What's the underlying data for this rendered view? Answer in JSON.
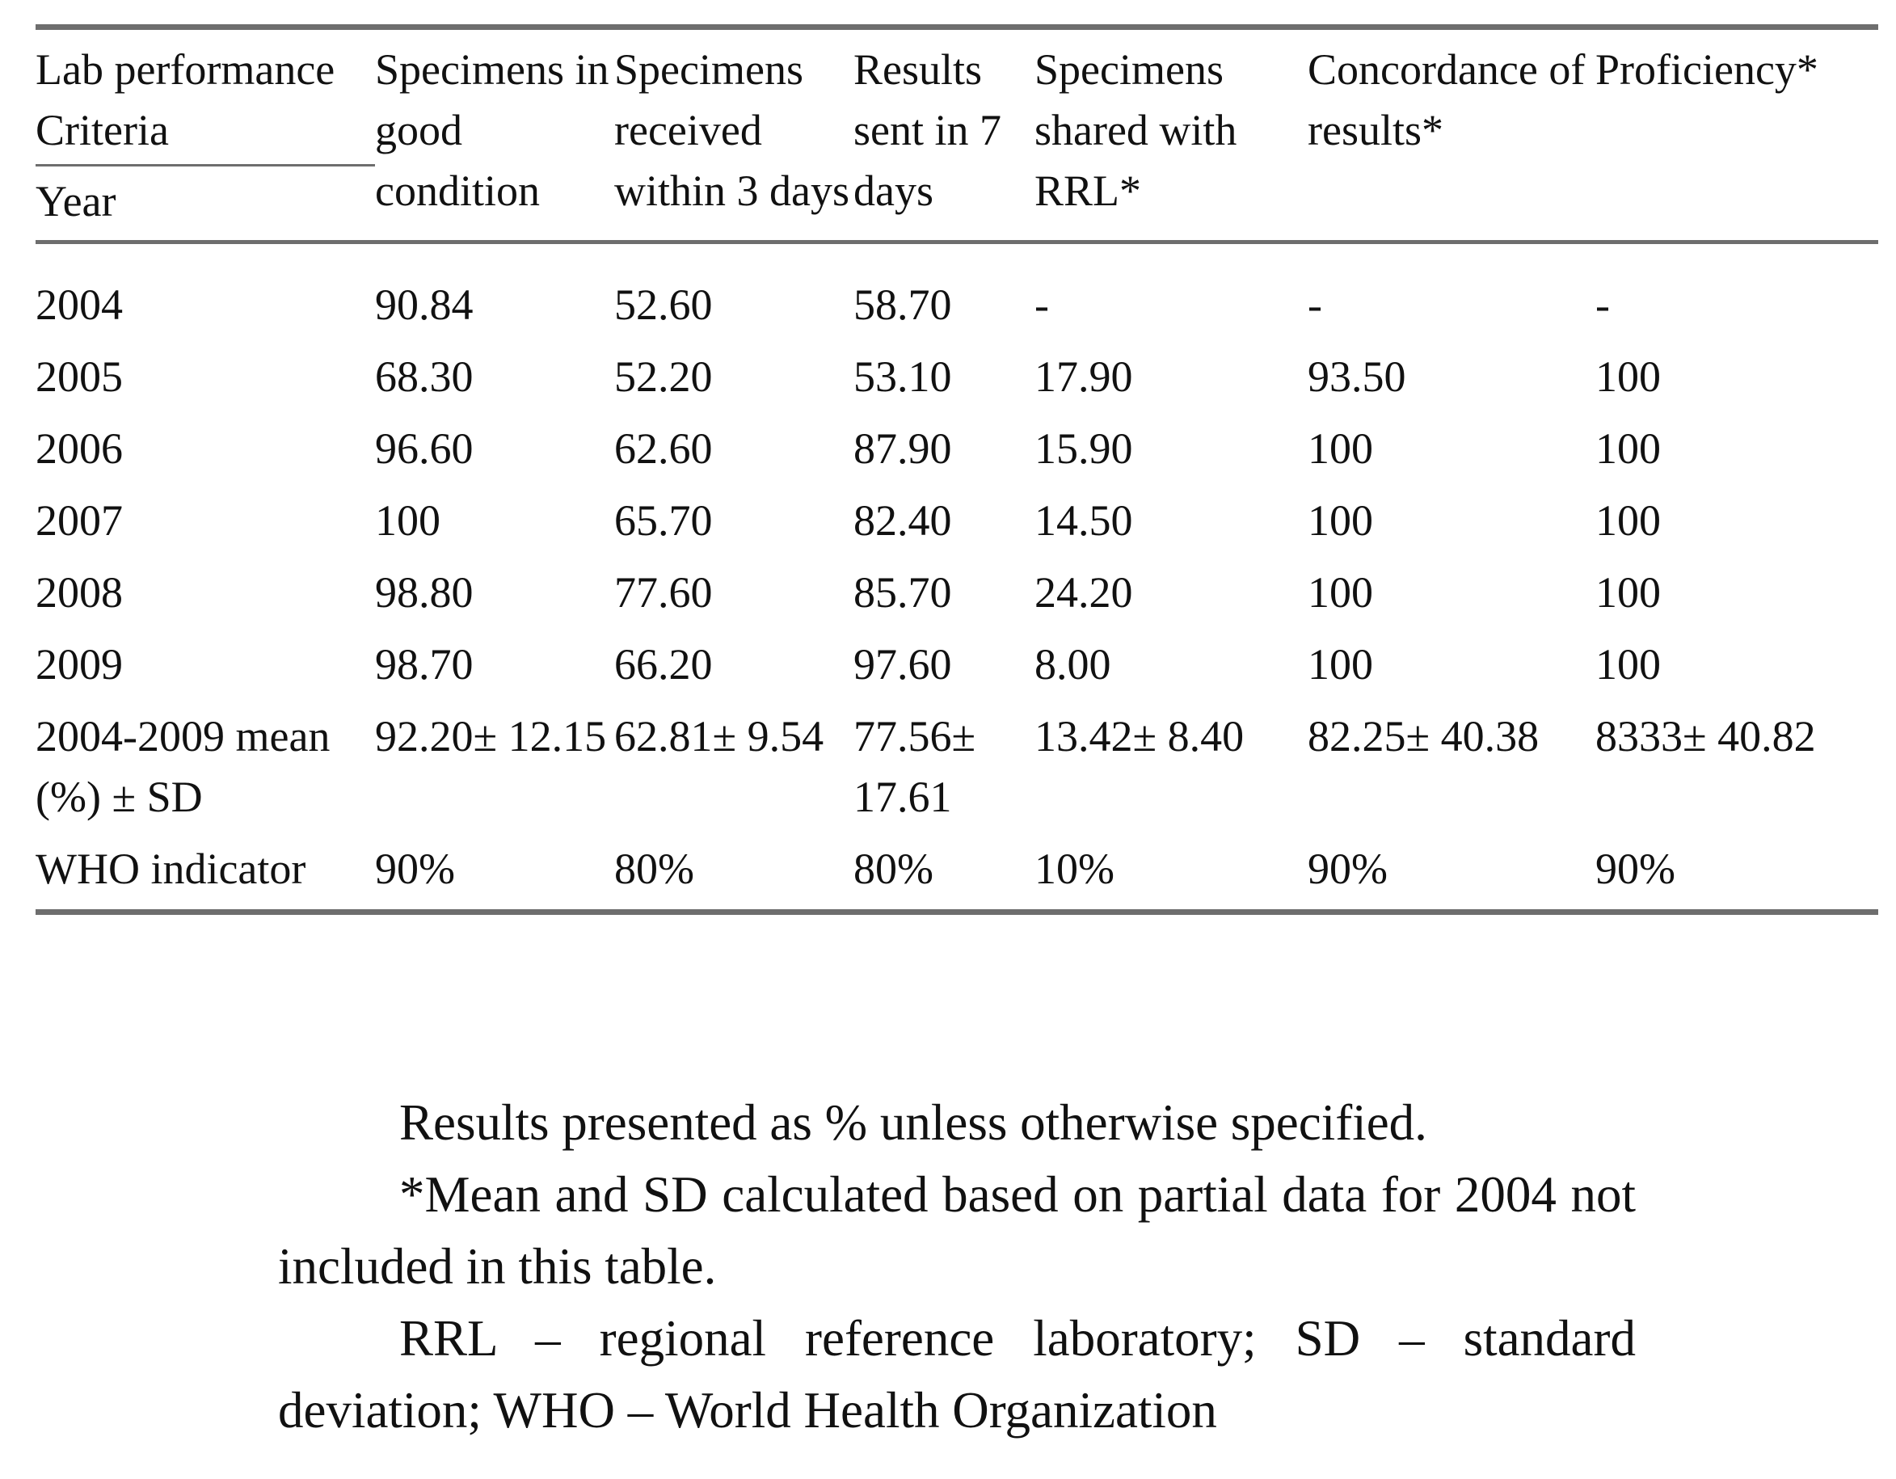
{
  "table": {
    "stub_header_top": "Lab performance Criteria",
    "stub_header_bottom": "Year",
    "columns": [
      "Specimens in good condition",
      "Specimens received within 3 days",
      "Results sent in 7 days",
      "Specimens shared with RRL*",
      "Concordance of results*",
      "Proficiency*"
    ],
    "rows": [
      {
        "label": "2004",
        "cells": [
          "90.84",
          "52.60",
          "58.70",
          "-",
          "-",
          "-"
        ]
      },
      {
        "label": "2005",
        "cells": [
          "68.30",
          "52.20",
          "53.10",
          "17.90",
          "93.50",
          "100"
        ]
      },
      {
        "label": "2006",
        "cells": [
          "96.60",
          "62.60",
          "87.90",
          "15.90",
          "100",
          "100"
        ]
      },
      {
        "label": "2007",
        "cells": [
          "100",
          "65.70",
          "82.40",
          "14.50",
          "100",
          "100"
        ]
      },
      {
        "label": "2008",
        "cells": [
          "98.80",
          "77.60",
          "85.70",
          "24.20",
          "100",
          "100"
        ]
      },
      {
        "label": "2009",
        "cells": [
          "98.70",
          "66.20",
          "97.60",
          "8.00",
          "100",
          "100"
        ]
      },
      {
        "label": "2004-2009 mean (%) ± SD",
        "cells": [
          "92.20± 12.15",
          "62.81± 9.54",
          "77.56± 17.61",
          "13.42± 8.40",
          "82.25± 40.38",
          "8333± 40.82"
        ]
      },
      {
        "label": "WHO indicator",
        "cells": [
          "90%",
          "80%",
          "80%",
          "10%",
          "90%",
          "90%"
        ]
      }
    ]
  },
  "notes": [
    "Results presented as % unless otherwise specified.",
    "*Mean and SD calculated based on partial data for 2004 not included in this table.",
    "RRL – regional reference laboratory; SD – standard deviation; WHO – World Health Organization"
  ]
}
